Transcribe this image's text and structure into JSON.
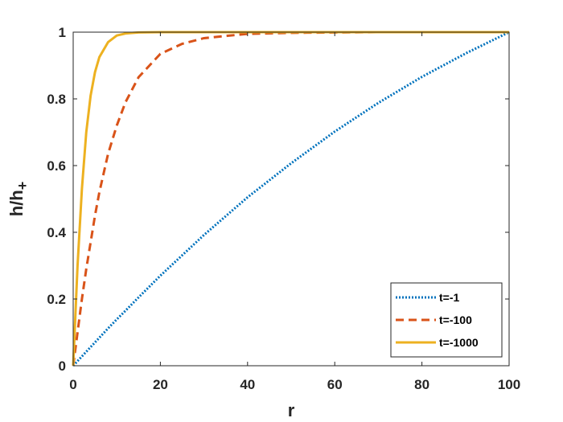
{
  "chart_data": {
    "type": "line",
    "xlabel": "r",
    "ylabel_main": "h/h",
    "ylabel_sub": "+",
    "xlim": [
      0,
      100
    ],
    "ylim": [
      0,
      1
    ],
    "xticks": [
      0,
      20,
      40,
      60,
      80,
      100
    ],
    "yticks": [
      0,
      0.2,
      0.4,
      0.6,
      0.8,
      1
    ],
    "xtick_labels": [
      "0",
      "20",
      "40",
      "60",
      "80",
      "100"
    ],
    "ytick_labels": [
      "0",
      "0.2",
      "0.4",
      "0.6",
      "0.8",
      "1"
    ],
    "grid": false,
    "legend_position": "bottom-right",
    "x": [
      0,
      1,
      2,
      3,
      4,
      5,
      6,
      8,
      10,
      12,
      15,
      20,
      25,
      30,
      40,
      50,
      60,
      70,
      80,
      90,
      100
    ],
    "series": [
      {
        "name": "t=-1",
        "color": "#0072BD",
        "style": "dotted",
        "values": [
          0,
          0.014,
          0.028,
          0.042,
          0.056,
          0.07,
          0.084,
          0.112,
          0.139,
          0.165,
          0.205,
          0.27,
          0.331,
          0.392,
          0.505,
          0.607,
          0.702,
          0.788,
          0.866,
          0.936,
          1.0
        ]
      },
      {
        "name": "t=-100",
        "color": "#D95319",
        "style": "dashed",
        "values": [
          0,
          0.1,
          0.2,
          0.29,
          0.37,
          0.45,
          0.52,
          0.635,
          0.72,
          0.79,
          0.865,
          0.935,
          0.965,
          0.982,
          0.995,
          0.998,
          0.999,
          1.0,
          1.0,
          1.0,
          1.0
        ]
      },
      {
        "name": "t=-1000",
        "color": "#EDB120",
        "style": "solid",
        "values": [
          0,
          0.3,
          0.53,
          0.7,
          0.81,
          0.88,
          0.925,
          0.97,
          0.99,
          0.996,
          0.999,
          1.0,
          1.0,
          1.0,
          1.0,
          1.0,
          1.0,
          1.0,
          1.0,
          1.0,
          1.0
        ]
      }
    ]
  }
}
